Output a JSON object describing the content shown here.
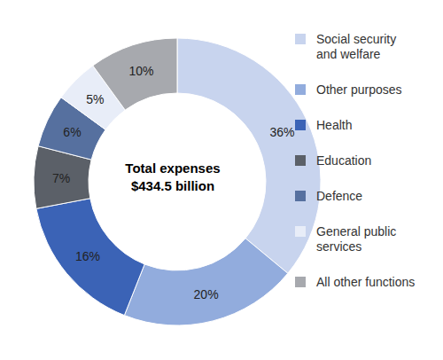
{
  "chart_data": {
    "type": "pie",
    "categories": [
      "Social security and welfare",
      "Other purposes",
      "Health",
      "Education",
      "Defence",
      "General public services",
      "All other functions"
    ],
    "values": [
      36,
      20,
      16,
      7,
      6,
      5,
      10
    ],
    "value_labels": [
      "36%",
      "20%",
      "16%",
      "7%",
      "6%",
      "5%",
      "10%"
    ],
    "colors": [
      "#c8d4ee",
      "#92acdd",
      "#3b63b6",
      "#5b6068",
      "#56709f",
      "#e8edf8",
      "#a7a9ae"
    ],
    "annotations": [
      "Total expenses",
      "$434.5 billion"
    ],
    "data_labels": true,
    "legend": "right"
  }
}
